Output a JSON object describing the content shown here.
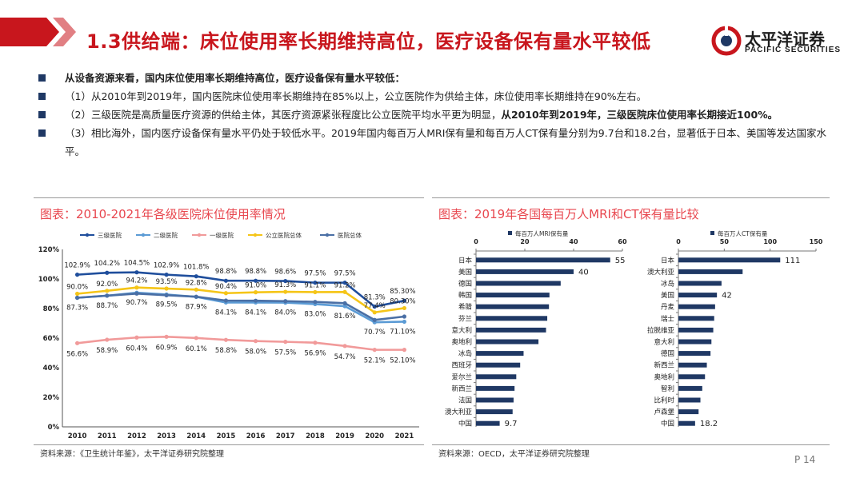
{
  "header": {
    "title": "1.3供给端：床位使用率长期维持高位，医疗设备保有量水平较低",
    "logo_cn": "太平洋证券",
    "logo_en": "PACIFIC SECURITIES"
  },
  "bullets": [
    {
      "normal": "",
      "bold": "从设备资源来看，国内床位使用率长期维持高位，医疗设备保有量水平较低："
    },
    {
      "normal": "（1）从2010年到2019年，国内医院床位使用率长期维持在85%以上，公立医院作为供给主体，床位使用率长期维持在90%左右。",
      "bold": ""
    },
    {
      "normal": "（2）三级医院是高质量医疗资源的供给主体，其医疗资源紧张程度比公立医院平均水平更为明显，",
      "bold": "从2010年到2019年，三级医院床位使用率长期接近100%。"
    },
    {
      "normal": "（3）相比海外，国内医疗设备保有量水平仍处于较低水平。2019年国内每百万人MRI保有量和每百万人CT保有量分别为9.7台和18.2台，显著低于日本、美国等发达国家水平。",
      "bold": ""
    }
  ],
  "left_panel": {
    "title": "图表：2010-2021年各级医院床位使用率情况",
    "source": "资料来源：《卫生统计年鉴》，太平洋证券研究院整理"
  },
  "right_panel": {
    "title": "图表：2019年各国每百万人MRI和CT保有量比较",
    "source": "资料来源：OECD，太平洋证券研究院整理"
  },
  "page_number": "P 14",
  "chart_data": [
    {
      "type": "line",
      "x": [
        "2010",
        "2011",
        "2012",
        "2013",
        "2014",
        "2015",
        "2016",
        "2017",
        "2018",
        "2019",
        "2020",
        "2021"
      ],
      "ylim": [
        0,
        120
      ],
      "yticks": [
        "0%",
        "20%",
        "40%",
        "60%",
        "80%",
        "100%",
        "120%"
      ],
      "grid": false,
      "legend_position": "top",
      "series": [
        {
          "name": "三级医院",
          "color": "#1f4e9c",
          "values": [
            102.9,
            104.2,
            104.5,
            102.9,
            101.8,
            98.8,
            98.8,
            98.6,
            97.5,
            97.5,
            81.3,
            85.3
          ],
          "labels": [
            "102.9%",
            "104.2%",
            "104.5%",
            "102.9%",
            "101.8%",
            "98.8%",
            "98.8%",
            "98.6%",
            "97.5%",
            "97.5%",
            "81.3%",
            "85.30%"
          ]
        },
        {
          "name": "二级医院",
          "color": "#5b9bd5",
          "values": [
            87.3,
            88.7,
            90.7,
            89.5,
            87.9,
            84.1,
            84.1,
            84.0,
            83.0,
            81.6,
            70.7,
            71.1
          ],
          "labels": [
            "87.3%",
            "88.7%",
            "90.7%",
            "89.5%",
            "87.9%",
            "84.1%",
            "84.1%",
            "84.0%",
            "83.0%",
            "81.6%",
            "70.7%",
            "71.10%"
          ]
        },
        {
          "name": "一级医院",
          "color": "#f19a9a",
          "values": [
            56.6,
            58.9,
            60.4,
            60.9,
            60.1,
            58.8,
            58.0,
            57.5,
            56.9,
            54.7,
            52.1,
            52.1
          ],
          "labels": [
            "56.6%",
            "58.9%",
            "60.4%",
            "60.9%",
            "60.1%",
            "58.8%",
            "58.0%",
            "57.5%",
            "56.9%",
            "54.7%",
            "52.1%",
            "52.10%"
          ]
        },
        {
          "name": "公立医院总体",
          "color": "#f5c518",
          "values": [
            90.0,
            92.0,
            94.2,
            93.5,
            92.8,
            90.4,
            91.0,
            91.3,
            91.1,
            91.2,
            77.4,
            80.3
          ],
          "labels": [
            "90.0%",
            "92.0%",
            "94.2%",
            "93.5%",
            "92.8%",
            "90.4%",
            "91.0%",
            "91.3%",
            "91.1%",
            "91.2%",
            "77.4%",
            "80.30%"
          ]
        },
        {
          "name": "医院总体",
          "color": "#4a6fa5",
          "values": [
            87.3,
            88.7,
            90.1,
            89.0,
            88.0,
            85.4,
            85.3,
            85.0,
            84.5,
            83.6,
            72.3,
            74.6
          ],
          "labels": []
        }
      ]
    },
    {
      "type": "bar",
      "orientation": "horizontal",
      "series_name": "每百万人MRI保有量",
      "color": "#1f3864",
      "xlim": [
        0,
        60
      ],
      "xticks": [
        "0",
        "20",
        "40",
        "60"
      ],
      "categories": [
        "日本",
        "美国",
        "德国",
        "韩国",
        "希腊",
        "芬兰",
        "意大利",
        "奥地利",
        "冰岛",
        "西班牙",
        "爱尔兰",
        "新西兰",
        "法国",
        "澳大利亚",
        "中国"
      ],
      "values": [
        55,
        40,
        34.7,
        30.1,
        29.9,
        29.2,
        28.7,
        25.6,
        19.5,
        18.1,
        16.5,
        15.8,
        15.4,
        15.0,
        9.7
      ],
      "data_labels": [
        "55",
        "40",
        "",
        "",
        "",
        "",
        "",
        "",
        "",
        "",
        "",
        "",
        "",
        "",
        "9.7"
      ]
    },
    {
      "type": "bar",
      "orientation": "horizontal",
      "series_name": "每百万人CT保有量",
      "color": "#1f3864",
      "xlim": [
        0,
        150
      ],
      "xticks": [
        "0",
        "50",
        "100",
        "150"
      ],
      "categories": [
        "日本",
        "澳大利亚",
        "冰岛",
        "美国",
        "丹麦",
        "瑞士",
        "拉脱维亚",
        "意大利",
        "德国",
        "新西兰",
        "奥地利",
        "智利",
        "比利时",
        "卢森堡",
        "中国"
      ],
      "values": [
        111,
        70,
        47,
        42,
        40,
        39,
        38,
        36,
        35,
        31,
        29,
        26,
        24,
        22,
        18.2
      ],
      "data_labels": [
        "111",
        "",
        "",
        "42",
        "",
        "",
        "",
        "",
        "",
        "",
        "",
        "",
        "",
        "",
        "18.2"
      ]
    }
  ]
}
